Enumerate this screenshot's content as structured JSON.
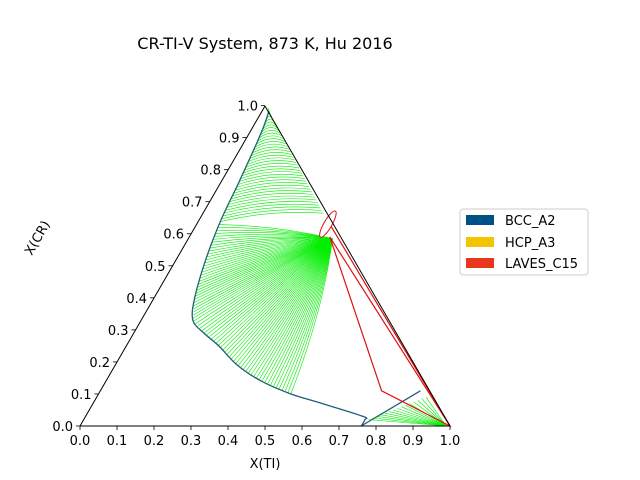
{
  "chart_data": {
    "type": "ternary",
    "title": "CR-TI-V System, 873 K, Hu 2016",
    "xlabel": "X(TI)",
    "ylabel": "X(CR)",
    "xlim": [
      0.0,
      1.0
    ],
    "ylim": [
      0.0,
      1.0
    ],
    "xticks": [
      "0.0",
      "0.1",
      "0.2",
      "0.3",
      "0.4",
      "0.5",
      "0.6",
      "0.7",
      "0.8",
      "0.9",
      "1.0"
    ],
    "yticks": [
      "0.0",
      "0.1",
      "0.2",
      "0.3",
      "0.4",
      "0.5",
      "0.6",
      "0.7",
      "0.8",
      "0.9",
      "1.0"
    ],
    "legend": {
      "placement": "center-right",
      "entries": [
        {
          "name": "BCC_A2",
          "color": "#005088"
        },
        {
          "name": "HCP_A3",
          "color": "#f5c400"
        },
        {
          "name": "LAVES_C15",
          "color": "#e8381c"
        }
      ]
    },
    "colors": {
      "tieline": "#00ee00",
      "bcc_boundary": "#1f5f7a",
      "laves_boundary": "#e01010"
    },
    "bcc_boundary": [
      [
        0.02,
        0.98
      ],
      [
        0.03,
        0.93
      ],
      [
        0.04,
        0.85
      ],
      [
        0.05,
        0.75
      ],
      [
        0.06,
        0.64
      ],
      [
        0.08,
        0.52
      ],
      [
        0.11,
        0.4
      ],
      [
        0.14,
        0.33
      ],
      [
        0.19,
        0.29
      ],
      [
        0.25,
        0.25
      ],
      [
        0.33,
        0.19
      ],
      [
        0.42,
        0.14
      ],
      [
        0.52,
        0.1
      ],
      [
        0.62,
        0.07
      ],
      [
        0.75,
        0.03
      ],
      [
        0.76,
        0.02
      ],
      [
        0.76,
        0.0
      ]
    ],
    "hcp_boundary": [
      [
        0.76,
        0.0
      ],
      [
        0.8,
        0.0
      ],
      [
        0.86,
        0.02
      ],
      [
        0.9,
        0.04
      ]
    ],
    "laves_region": [
      [
        0.34,
        0.66
      ],
      [
        0.44,
        0.58
      ],
      [
        0.38,
        0.59
      ],
      [
        0.35,
        0.61
      ]
    ],
    "three_phase_triangle": [
      [
        0.76,
        0.11
      ],
      [
        0.38,
        0.59
      ],
      [
        1.0,
        0.0
      ]
    ],
    "bcc_tie_region": [
      [
        0.9,
        0.02
      ],
      [
        1.0,
        0.0
      ],
      [
        0.98,
        0.0
      ]
    ]
  }
}
